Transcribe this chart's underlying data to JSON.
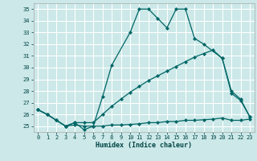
{
  "xlabel": "Humidex (Indice chaleur)",
  "background_color": "#cce8e8",
  "grid_color": "#ffffff",
  "line_color": "#006666",
  "xlim": [
    -0.5,
    23.5
  ],
  "ylim": [
    24.5,
    35.5
  ],
  "xticks": [
    0,
    1,
    2,
    3,
    4,
    5,
    6,
    7,
    8,
    9,
    10,
    11,
    12,
    13,
    14,
    15,
    16,
    17,
    18,
    19,
    20,
    21,
    22,
    23
  ],
  "yticks": [
    25,
    26,
    27,
    28,
    29,
    30,
    31,
    32,
    33,
    34,
    35
  ],
  "line1_x": [
    0,
    1,
    2,
    3,
    4,
    5,
    6,
    7,
    8,
    10,
    11,
    12,
    13,
    14,
    15,
    16,
    17,
    18,
    20,
    21,
    22,
    23
  ],
  "line1_y": [
    26.4,
    26.0,
    25.5,
    25.0,
    25.3,
    24.7,
    25.0,
    27.5,
    30.2,
    33.0,
    35.0,
    35.0,
    34.2,
    33.4,
    35.0,
    35.0,
    32.5,
    32.0,
    30.8,
    27.8,
    27.2,
    25.8
  ],
  "line2_x": [
    0,
    1,
    2,
    3,
    4,
    5,
    6,
    7,
    8,
    9,
    10,
    11,
    12,
    13,
    14,
    15,
    16,
    17,
    18,
    19,
    20,
    21,
    22,
    23
  ],
  "line2_y": [
    26.4,
    26.0,
    25.5,
    25.0,
    25.1,
    25.0,
    25.0,
    25.0,
    25.1,
    25.1,
    25.15,
    25.2,
    25.3,
    25.3,
    25.4,
    25.4,
    25.5,
    25.5,
    25.55,
    25.6,
    25.7,
    25.5,
    25.5,
    25.6
  ],
  "line3_x": [
    0,
    1,
    2,
    3,
    4,
    5,
    6,
    7,
    8,
    9,
    10,
    11,
    12,
    13,
    14,
    15,
    16,
    17,
    18,
    19,
    20,
    21,
    22,
    23
  ],
  "line3_y": [
    26.4,
    26.0,
    25.5,
    25.0,
    25.3,
    25.3,
    25.3,
    26.0,
    26.7,
    27.3,
    27.9,
    28.4,
    28.9,
    29.3,
    29.7,
    30.1,
    30.5,
    30.9,
    31.2,
    31.5,
    30.8,
    28.0,
    27.3,
    25.8
  ]
}
